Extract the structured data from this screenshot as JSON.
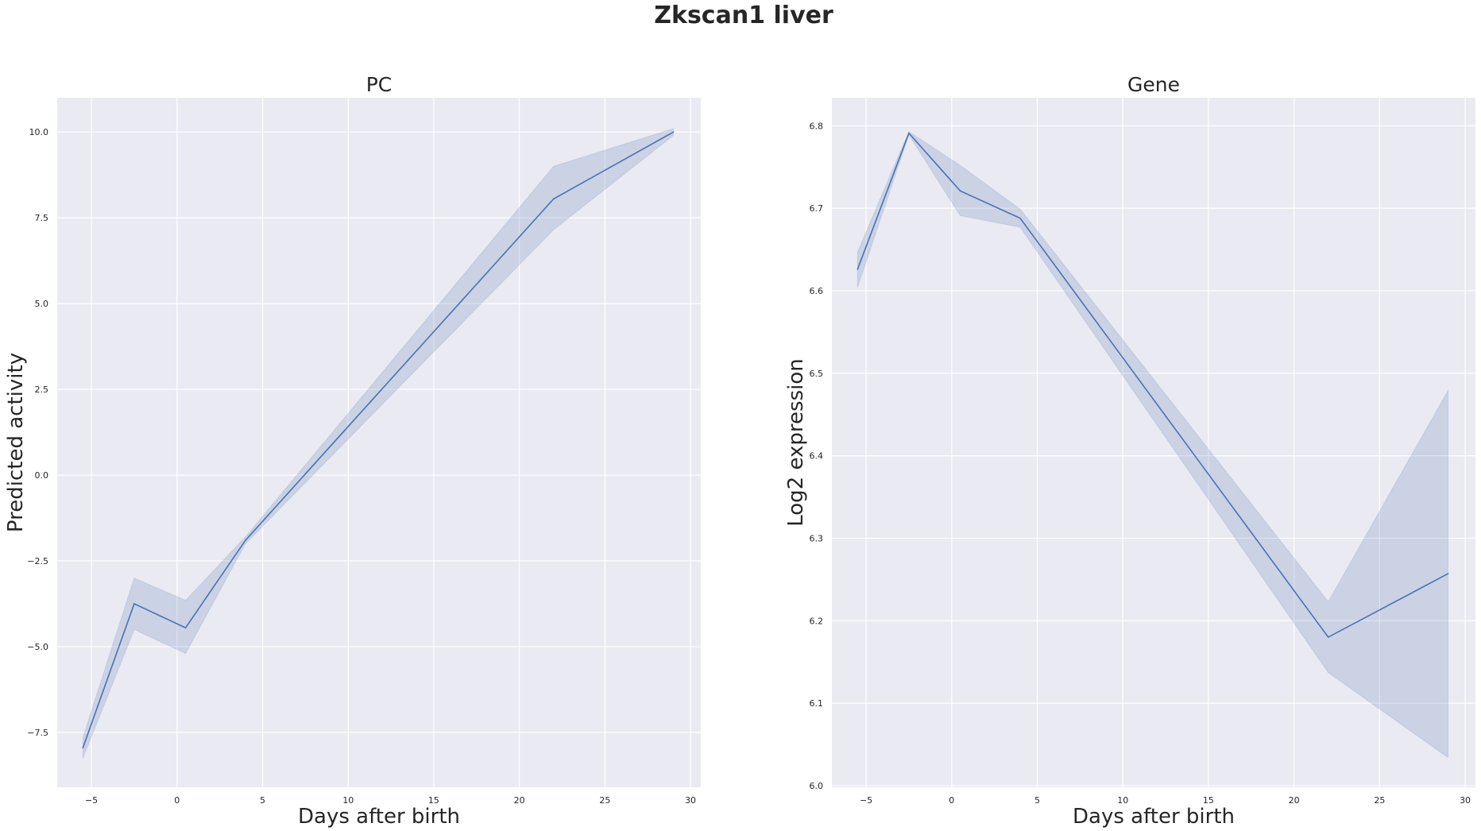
{
  "figure": {
    "title": "Zkscan1 liver"
  },
  "chart_data": [
    {
      "type": "line",
      "title": "PC",
      "xlabel": "Days after birth",
      "ylabel": "Predicted activity",
      "xlim": [
        -7,
        30.6
      ],
      "ylim": [
        -9.1,
        11
      ],
      "xticks": [
        -5,
        0,
        5,
        10,
        15,
        20,
        25,
        30
      ],
      "yticks": [
        -7.5,
        -5.0,
        -2.5,
        0.0,
        2.5,
        5.0,
        7.5,
        10.0
      ],
      "xtick_labels": [
        "−5",
        "0",
        "5",
        "10",
        "15",
        "20",
        "25",
        "30"
      ],
      "ytick_labels": [
        "−7.5",
        "−5.0",
        "−2.5",
        "0.0",
        "2.5",
        "5.0",
        "7.5",
        "10.0"
      ],
      "grid": true,
      "color": "#4c72b0",
      "x": [
        -5.5,
        -2.5,
        0.5,
        4,
        22,
        29
      ],
      "y": [
        -7.95,
        -3.75,
        -4.45,
        -1.9,
        8.05,
        10.0
      ],
      "ci_lower": [
        -8.25,
        -4.5,
        -5.2,
        -2.0,
        7.15,
        9.9
      ],
      "ci_upper": [
        -7.65,
        -3.0,
        -3.65,
        -1.8,
        9.0,
        10.1
      ]
    },
    {
      "type": "line",
      "title": "Gene",
      "xlabel": "Days after birth",
      "ylabel": "Log2 expression",
      "xlim": [
        -7,
        30.6
      ],
      "ylim": [
        5.998,
        6.834
      ],
      "xticks": [
        -5,
        0,
        5,
        10,
        15,
        20,
        25,
        30
      ],
      "yticks": [
        6.0,
        6.1,
        6.2,
        6.3,
        6.4,
        6.5,
        6.6,
        6.7,
        6.8
      ],
      "xtick_labels": [
        "−5",
        "0",
        "5",
        "10",
        "15",
        "20",
        "25",
        "30"
      ],
      "ytick_labels": [
        "6.0",
        "6.1",
        "6.2",
        "6.3",
        "6.4",
        "6.5",
        "6.6",
        "6.7",
        "6.8"
      ],
      "grid": true,
      "color": "#4c72b0",
      "x": [
        -5.5,
        -2.5,
        0.5,
        4,
        22,
        29
      ],
      "y": [
        6.626,
        6.791,
        6.721,
        6.688,
        6.18,
        6.257
      ],
      "ci_lower": [
        6.604,
        6.789,
        6.691,
        6.677,
        6.137,
        6.034
      ],
      "ci_upper": [
        6.647,
        6.793,
        6.752,
        6.699,
        6.223,
        6.479
      ]
    }
  ]
}
